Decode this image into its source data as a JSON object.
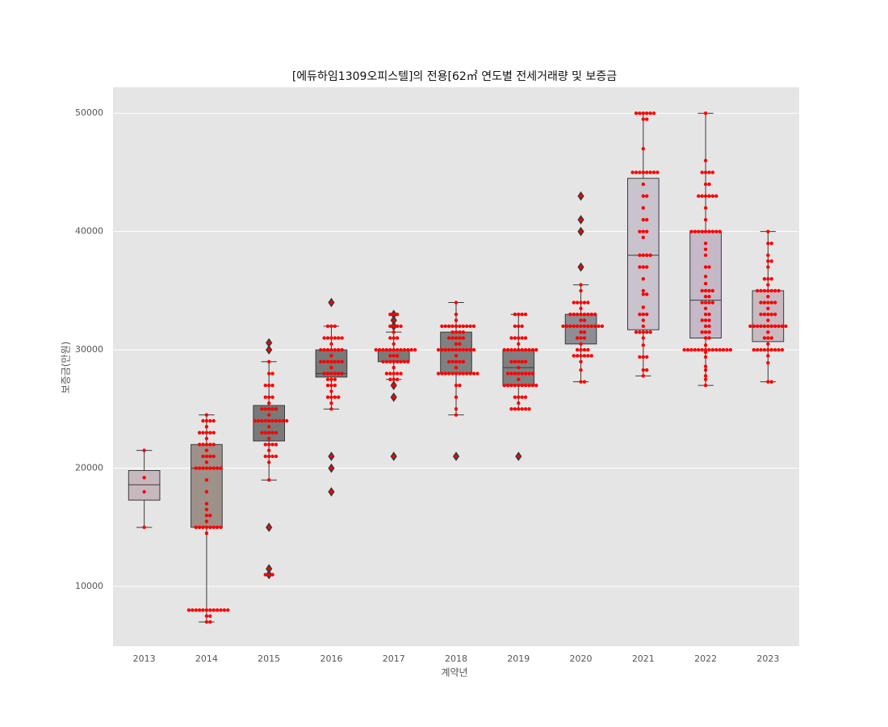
{
  "chart_data": {
    "type": "box",
    "title": "[에듀하임1309오피스텔]의 전용[62㎡ 연도별 전세거래량 및 보증금",
    "xlabel": "계약년",
    "ylabel": "보증금(만원)",
    "categories": [
      "2013",
      "2014",
      "2015",
      "2016",
      "2017",
      "2018",
      "2019",
      "2020",
      "2021",
      "2022",
      "2023"
    ],
    "ylim": [
      4950,
      52200
    ],
    "yticks": [
      10000,
      20000,
      30000,
      40000,
      50000
    ],
    "grid": true,
    "point_color": "#ff0000",
    "flier_color": "#3a3a3a",
    "boxes": [
      {
        "color": "#c7b8be",
        "whislo": 15000,
        "q1": 17300,
        "med": 18600,
        "q3": 19800,
        "whishi": 21500,
        "fliers": [],
        "points": [
          21500,
          19200,
          18000,
          15000
        ]
      },
      {
        "color": "#9e9189",
        "whislo": 7000,
        "q1": 15000,
        "med": 20000,
        "q3": 22000,
        "whishi": 24500,
        "fliers": [],
        "points": [
          8000,
          8000,
          8000,
          8000,
          8000,
          8000,
          8000,
          8000,
          8000,
          8000,
          8000,
          8000,
          7500,
          7500,
          7000,
          7000,
          14500,
          15000,
          15000,
          15000,
          15000,
          15000,
          15000,
          15000,
          15000,
          15500,
          16000,
          16000,
          16500,
          17000,
          18000,
          19000,
          20000,
          20000,
          20000,
          20000,
          20000,
          20000,
          20000,
          20000,
          20500,
          21000,
          21000,
          21000,
          21000,
          21500,
          22000,
          22000,
          22000,
          22000,
          22000,
          22500,
          23000,
          23000,
          23000,
          23000,
          23000,
          23500,
          24000,
          24000,
          24000,
          24000,
          24500
        ]
      },
      {
        "color": "#797979",
        "whislo": 19000,
        "q1": 22300,
        "med": 24000,
        "q3": 25300,
        "whishi": 29000,
        "fliers": [
          30600,
          30000,
          15000,
          11500,
          11000
        ],
        "points": [
          11000,
          11000,
          11000,
          11500,
          15000,
          19000,
          20500,
          21000,
          21000,
          21000,
          21000,
          21500,
          22000,
          22000,
          22000,
          22000,
          22500,
          23000,
          23000,
          23000,
          23000,
          23000,
          23500,
          24000,
          24000,
          24000,
          24000,
          24000,
          24000,
          24000,
          24000,
          24000,
          24000,
          24500,
          25000,
          25000,
          25000,
          25000,
          25000,
          25500,
          26000,
          26000,
          26000,
          27000,
          27000,
          27000,
          28000,
          28000,
          29000,
          30000,
          30600
        ]
      },
      {
        "color": "#797979",
        "whislo": 25000,
        "q1": 27700,
        "med": 28000,
        "q3": 30000,
        "whishi": 32000,
        "fliers": [
          34000,
          21000,
          20000,
          18000
        ],
        "points": [
          18000,
          20000,
          21000,
          25000,
          25500,
          26000,
          26000,
          26000,
          26000,
          26500,
          27000,
          27000,
          27000,
          27500,
          27500,
          27500,
          28000,
          28000,
          28000,
          28000,
          28000,
          28000,
          28500,
          29000,
          29000,
          29000,
          29000,
          29000,
          29000,
          29000,
          29500,
          30000,
          30000,
          30000,
          30000,
          30000,
          30000,
          30000,
          30500,
          31000,
          31000,
          31000,
          31000,
          31000,
          31000,
          32000,
          32000,
          32000,
          34000
        ]
      },
      {
        "color": "#7b7b7b",
        "whislo": 27500,
        "q1": 29000,
        "med": 30000,
        "q3": 30000,
        "whishi": 31500,
        "fliers": [
          33000,
          32500,
          32000,
          27000,
          26000,
          21000
        ],
        "points": [
          21000,
          26000,
          27000,
          27500,
          27500,
          27500,
          28000,
          28000,
          28000,
          28000,
          28000,
          28500,
          29000,
          29000,
          29000,
          29000,
          29000,
          29000,
          29000,
          29000,
          29500,
          29500,
          29500,
          30000,
          30000,
          30000,
          30000,
          30000,
          30000,
          30000,
          30000,
          30000,
          30000,
          30000,
          30000,
          30500,
          31000,
          31000,
          31000,
          31500,
          32000,
          32000,
          32000,
          32000,
          32500,
          33000,
          33000,
          33000
        ]
      },
      {
        "color": "#808080",
        "whislo": 24500,
        "q1": 28000,
        "med": 30000,
        "q3": 31500,
        "whishi": 34000,
        "fliers": [
          21000
        ],
        "points": [
          21000,
          24500,
          25000,
          26000,
          27000,
          27000,
          28000,
          28000,
          28000,
          28000,
          28000,
          28000,
          28000,
          28000,
          28000,
          28000,
          28000,
          28000,
          28500,
          29000,
          29000,
          29000,
          29000,
          29000,
          29500,
          30000,
          30000,
          30000,
          30000,
          30000,
          30000,
          30000,
          30000,
          30000,
          30000,
          30000,
          30500,
          30500,
          31000,
          31000,
          31000,
          31000,
          31000,
          31500,
          31500,
          31500,
          31500,
          32000,
          32000,
          32000,
          32000,
          32000,
          32000,
          32000,
          32000,
          32000,
          32000,
          32500,
          33000,
          34000
        ]
      },
      {
        "color": "#808080",
        "whislo": 25000,
        "q1": 27000,
        "med": 28500,
        "q3": 30000,
        "whishi": 33000,
        "fliers": [
          21000
        ],
        "points": [
          21000,
          25000,
          25000,
          25000,
          25000,
          25000,
          25000,
          25500,
          26000,
          26000,
          26000,
          26000,
          27000,
          27000,
          27000,
          27000,
          27000,
          27000,
          27000,
          27000,
          27000,
          27000,
          27500,
          28000,
          28000,
          28000,
          28000,
          28000,
          28000,
          28000,
          28000,
          28500,
          29000,
          29000,
          29000,
          29000,
          29000,
          30000,
          30000,
          30000,
          30000,
          30000,
          30000,
          30000,
          30000,
          30000,
          30000,
          30500,
          31000,
          31000,
          31000,
          31000,
          31000,
          32000,
          32000,
          32000,
          33000,
          33000,
          33000,
          33000
        ]
      },
      {
        "color": "#8d8d96",
        "whislo": 27300,
        "q1": 30500,
        "med": 32000,
        "q3": 33000,
        "whishi": 35500,
        "fliers": [
          43000,
          41000,
          40000,
          37000
        ],
        "points": [
          27300,
          27300,
          28300,
          29000,
          29500,
          29500,
          29500,
          29500,
          29500,
          29500,
          30000,
          30000,
          30000,
          30000,
          30500,
          31000,
          31000,
          31000,
          31500,
          31500,
          32000,
          32000,
          32000,
          32000,
          32000,
          32000,
          32000,
          32000,
          32000,
          32000,
          32000,
          32000,
          32500,
          32500,
          33000,
          33000,
          33000,
          33000,
          33000,
          33000,
          33000,
          33000,
          33500,
          34000,
          34000,
          34000,
          34000,
          34000,
          35000,
          35500,
          37000,
          40000,
          41000,
          43000
        ]
      },
      {
        "color": "#c9c3ce",
        "whislo": 27800,
        "q1": 31700,
        "med": 38000,
        "q3": 44500,
        "whishi": 50000,
        "fliers": [],
        "points": [
          27800,
          28300,
          28300,
          29400,
          29400,
          29400,
          30400,
          31000,
          31500,
          31500,
          31500,
          31500,
          31500,
          32000,
          32500,
          33000,
          33000,
          33000,
          33600,
          34700,
          34700,
          35000,
          36000,
          37000,
          37000,
          37000,
          38000,
          38000,
          38000,
          38000,
          39500,
          40000,
          40000,
          40000,
          41000,
          41000,
          42000,
          43000,
          43000,
          44000,
          45000,
          45000,
          45000,
          45000,
          45000,
          45000,
          45000,
          45000,
          47000,
          49500,
          49500,
          50000,
          50000,
          50000,
          50000,
          50000,
          50000
        ]
      },
      {
        "color": "#c5b9c8",
        "whislo": 27000,
        "q1": 31000,
        "med": 34200,
        "q3": 40000,
        "whishi": 50000,
        "fliers": [],
        "points": [
          27000,
          27500,
          27800,
          28300,
          28600,
          29400,
          29800,
          30000,
          30000,
          30000,
          30000,
          30000,
          30000,
          30000,
          30000,
          30000,
          30000,
          30000,
          30000,
          30000,
          30000,
          30400,
          31000,
          31000,
          31500,
          31500,
          31500,
          32000,
          32000,
          32500,
          32500,
          32500,
          33000,
          33000,
          33500,
          34000,
          34000,
          34000,
          34000,
          34500,
          34500,
          35000,
          35000,
          35000,
          35000,
          35600,
          36200,
          37000,
          37000,
          38000,
          38500,
          39000,
          40000,
          40000,
          40000,
          40000,
          40000,
          40000,
          40000,
          40000,
          40000,
          41000,
          42000,
          43000,
          43000,
          43000,
          43000,
          43000,
          43000,
          44000,
          44000,
          45000,
          45000,
          45000,
          45000,
          46000,
          50000
        ]
      },
      {
        "color": "#c9b9c1",
        "whislo": 27300,
        "q1": 30700,
        "med": 32000,
        "q3": 35000,
        "whishi": 40000,
        "fliers": [],
        "points": [
          27300,
          27300,
          28900,
          29500,
          30000,
          30000,
          30000,
          30000,
          30000,
          30000,
          30000,
          30000,
          30000,
          30500,
          31000,
          31000,
          31000,
          31500,
          32000,
          32000,
          32000,
          32000,
          32000,
          32000,
          32000,
          32000,
          32000,
          32000,
          32000,
          32500,
          33000,
          33000,
          33000,
          33000,
          33000,
          33500,
          34000,
          34000,
          34000,
          34000,
          34000,
          34500,
          35000,
          35000,
          35000,
          35000,
          35000,
          35000,
          35000,
          35500,
          36000,
          36000,
          36000,
          37000,
          37500,
          37500,
          38000,
          39000,
          39000,
          40000
        ]
      }
    ]
  }
}
